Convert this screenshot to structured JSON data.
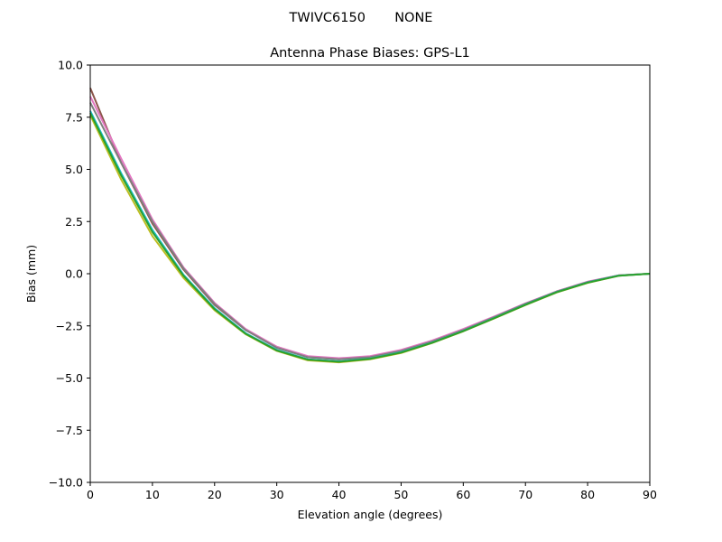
{
  "suptitle": "TWIVC6150       NONE",
  "chart_data": {
    "type": "line",
    "title": "Antenna Phase Biases: GPS-L1",
    "xlabel": "Elevation angle (degrees)",
    "ylabel": "Bias (mm)",
    "xlim": [
      0,
      90
    ],
    "ylim": [
      -10,
      10
    ],
    "xticks": [
      0,
      10,
      20,
      30,
      40,
      50,
      60,
      70,
      80,
      90
    ],
    "yticks": [
      -10.0,
      -7.5,
      -5.0,
      -2.5,
      0.0,
      2.5,
      5.0,
      7.5,
      10.0
    ],
    "xtick_labels": [
      "0",
      "10",
      "20",
      "30",
      "40",
      "50",
      "60",
      "70",
      "80",
      "90"
    ],
    "ytick_labels": [
      "−10.0",
      "−7.5",
      "−5.0",
      "−2.5",
      "0.0",
      "2.5",
      "5.0",
      "7.5",
      "10.0"
    ],
    "grid": false,
    "x": [
      0,
      5,
      10,
      15,
      20,
      25,
      30,
      35,
      40,
      45,
      50,
      55,
      60,
      65,
      70,
      75,
      80,
      85,
      90
    ],
    "series": [
      {
        "color": "#8c564b",
        "values": [
          8.9,
          5.3,
          2.4,
          0.2,
          -1.5,
          -2.7,
          -3.5,
          -4.0,
          -4.1,
          -4.0,
          -3.7,
          -3.25,
          -2.7,
          -2.1,
          -1.45,
          -0.85,
          -0.4,
          -0.08,
          0
        ]
      },
      {
        "color": "#e377c2",
        "values": [
          8.5,
          5.5,
          2.6,
          0.3,
          -1.4,
          -2.65,
          -3.5,
          -3.95,
          -4.05,
          -3.95,
          -3.65,
          -3.2,
          -2.65,
          -2.05,
          -1.42,
          -0.85,
          -0.38,
          -0.08,
          0
        ]
      },
      {
        "color": "#7f7f7f",
        "values": [
          8.2,
          5.3,
          2.5,
          0.25,
          -1.45,
          -2.7,
          -3.55,
          -4.0,
          -4.1,
          -4.0,
          -3.7,
          -3.25,
          -2.7,
          -2.08,
          -1.44,
          -0.86,
          -0.4,
          -0.08,
          0
        ]
      },
      {
        "color": "#bcbd22",
        "values": [
          7.6,
          4.5,
          1.8,
          -0.2,
          -1.75,
          -2.9,
          -3.7,
          -4.15,
          -4.25,
          -4.1,
          -3.8,
          -3.32,
          -2.76,
          -2.14,
          -1.5,
          -0.9,
          -0.44,
          -0.1,
          0
        ]
      },
      {
        "color": "#17becf",
        "values": [
          7.8,
          4.8,
          2.1,
          -0.05,
          -1.65,
          -2.85,
          -3.65,
          -4.1,
          -4.2,
          -4.07,
          -3.76,
          -3.3,
          -2.74,
          -2.12,
          -1.48,
          -0.88,
          -0.42,
          -0.09,
          0
        ]
      },
      {
        "color": "#2ca02c",
        "values": [
          7.7,
          4.7,
          2.0,
          -0.1,
          -1.7,
          -2.88,
          -3.68,
          -4.12,
          -4.22,
          -4.08,
          -3.78,
          -3.31,
          -2.75,
          -2.13,
          -1.49,
          -0.89,
          -0.43,
          -0.1,
          0
        ]
      }
    ]
  }
}
